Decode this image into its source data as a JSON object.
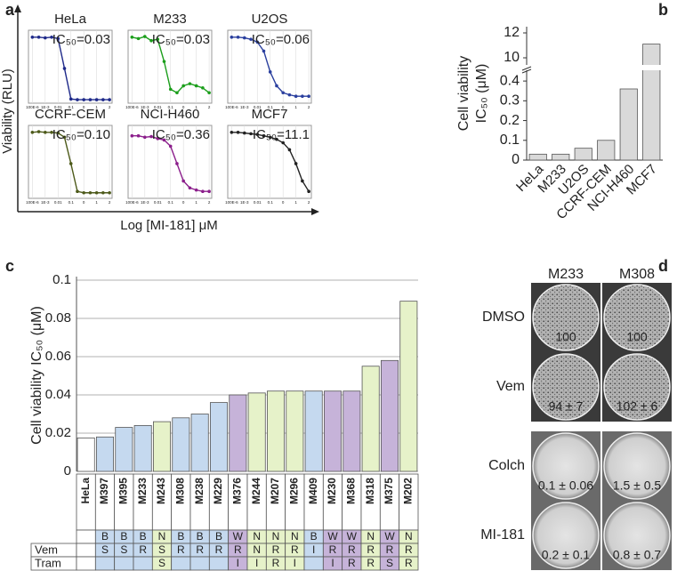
{
  "panel_labels": [
    "a",
    "b",
    "c",
    "d"
  ],
  "panel_a": {
    "ylabel": "Viability (RLU)",
    "xlabel": "Log [MI-181] μM"
  },
  "chart_data": [
    {
      "type": "dose-response",
      "title": "HeLa",
      "annotation": "IC₅₀=0.03",
      "color": "#1f2a8a",
      "x": [
        -4,
        -3.5,
        -3,
        -2.5,
        -2,
        -1.5,
        -1,
        -0.5,
        0,
        0.5,
        1,
        1.5,
        2
      ],
      "values": [
        95,
        95,
        94,
        95,
        93,
        50,
        6,
        5,
        5,
        5,
        5,
        5,
        5
      ],
      "xlim": [
        -4.3,
        2.2
      ],
      "ylim": [
        0,
        105
      ],
      "grid": true,
      "xticks": [
        {
          "value": -4,
          "label": "100E-6"
        },
        {
          "value": -3,
          "label": "1E-3"
        },
        {
          "value": -2,
          "label": "0.01"
        },
        {
          "value": -1,
          "label": "0.1"
        },
        0,
        1,
        2
      ]
    },
    {
      "type": "dose-response",
      "title": "M233",
      "annotation": "IC₅₀=0.03",
      "color": "#1b9e1b",
      "x": [
        -4,
        -3.5,
        -3,
        -2.5,
        -2,
        -1.5,
        -1,
        -0.5,
        0,
        0.5,
        1,
        1.5,
        2
      ],
      "values": [
        95,
        93,
        96,
        90,
        92,
        60,
        20,
        15,
        25,
        28,
        25,
        22,
        15
      ],
      "xlim": [
        -4.3,
        2.2
      ],
      "ylim": [
        0,
        105
      ],
      "grid": true,
      "xticks": [
        {
          "value": -4,
          "label": "100E-6"
        },
        {
          "value": -3,
          "label": "1E-3"
        },
        {
          "value": -2,
          "label": "0.01"
        },
        {
          "value": -1,
          "label": "0.1"
        },
        0,
        1,
        2
      ]
    },
    {
      "type": "dose-response",
      "title": "U2OS",
      "annotation": "IC₅₀=0.06",
      "color": "#2a3f9e",
      "x": [
        -4,
        -3.5,
        -3,
        -2.5,
        -2,
        -1.5,
        -1,
        -0.5,
        0,
        0.5,
        1,
        1.5,
        2
      ],
      "values": [
        95,
        95,
        94,
        92,
        88,
        75,
        45,
        25,
        15,
        12,
        10,
        10,
        10
      ],
      "xlim": [
        -4.3,
        2.2
      ],
      "ylim": [
        0,
        105
      ],
      "grid": true,
      "xticks": [
        {
          "value": -4,
          "label": "100E-6"
        },
        {
          "value": -3,
          "label": "1E-3"
        },
        {
          "value": -2,
          "label": "0.01"
        },
        {
          "value": -1,
          "label": "0.1"
        },
        0,
        1,
        2
      ]
    },
    {
      "type": "dose-response",
      "title": "CCRF-CEM",
      "annotation": "IC₅₀=0.10",
      "color": "#4d5a1a",
      "x": [
        -4,
        -3.5,
        -3,
        -2.5,
        -2,
        -1.5,
        -1,
        -0.5,
        0,
        0.5,
        1,
        1.5,
        2
      ],
      "values": [
        95,
        96,
        95,
        95,
        94,
        88,
        50,
        10,
        8,
        8,
        8,
        8,
        8
      ],
      "xlim": [
        -4.3,
        2.2
      ],
      "ylim": [
        0,
        105
      ],
      "grid": true,
      "xticks": [
        {
          "value": -4,
          "label": "100E-6"
        },
        {
          "value": -3,
          "label": "1E-3"
        },
        {
          "value": -2,
          "label": "0.01"
        },
        {
          "value": -1,
          "label": "0.1"
        },
        0,
        1,
        2
      ]
    },
    {
      "type": "dose-response",
      "title": "NCI-H460",
      "annotation": "IC₅₀=0.36",
      "color": "#8b1e8b",
      "x": [
        -4,
        -3.5,
        -3,
        -2.5,
        -2,
        -1.5,
        -1,
        -0.5,
        0,
        0.5,
        1,
        1.5,
        2
      ],
      "values": [
        90,
        90,
        88,
        89,
        86,
        84,
        75,
        50,
        25,
        15,
        12,
        10,
        10
      ],
      "xlim": [
        -4.3,
        2.2
      ],
      "ylim": [
        0,
        105
      ],
      "grid": true,
      "xticks": [
        {
          "value": -4,
          "label": "100E-6"
        },
        {
          "value": -3,
          "label": "1E-3"
        },
        {
          "value": -2,
          "label": "0.01"
        },
        {
          "value": -1,
          "label": "0.1"
        },
        0,
        1,
        2
      ]
    },
    {
      "type": "dose-response",
      "title": "MCF7",
      "annotation": "IC₅₀=11.1",
      "color": "#222222",
      "x": [
        -4,
        -3.5,
        -3,
        -2.5,
        -2,
        -1.5,
        -1,
        -0.5,
        0,
        0.5,
        1,
        1.5,
        2
      ],
      "values": [
        95,
        95,
        94,
        93,
        92,
        90,
        88,
        85,
        80,
        70,
        50,
        25,
        10
      ],
      "xlim": [
        -4.3,
        2.2
      ],
      "ylim": [
        0,
        105
      ],
      "grid": true,
      "xticks": [
        {
          "value": -4,
          "label": "100E-6"
        },
        {
          "value": -3,
          "label": "1E-3"
        },
        {
          "value": -2,
          "label": "0.01"
        },
        {
          "value": -1,
          "label": "0.1"
        },
        0,
        1,
        2
      ]
    },
    {
      "type": "broken-bar",
      "ylabel": [
        "Cell viability",
        "IC₅₀ (μM)"
      ],
      "categories": [
        "HeLa",
        "M233",
        "U2OS",
        "CCRF-CEM",
        "NCI-H460",
        "MCF7"
      ],
      "values": [
        0.03,
        0.03,
        0.06,
        0.1,
        0.36,
        11.1
      ],
      "color": "#d9d9d9",
      "ylim": [
        0,
        12.5
      ],
      "axis_break": [
        0.45,
        9.5
      ],
      "yticks": [
        0,
        0.1,
        0.2,
        0.3,
        0.4,
        10,
        12
      ]
    },
    {
      "type": "bar",
      "ylabel": "Cell viability IC₅₀ (μM)",
      "categories": [
        "HeLa",
        "M397",
        "M395",
        "M233",
        "M243",
        "M308",
        "M238",
        "M229",
        "M376",
        "M244",
        "M207",
        "M296",
        "M409",
        "M230",
        "M368",
        "M318",
        "M375",
        "M202"
      ],
      "values": [
        0.0175,
        0.018,
        0.023,
        0.024,
        0.026,
        0.028,
        0.03,
        0.036,
        0.04,
        0.041,
        0.042,
        0.042,
        0.042,
        0.042,
        0.042,
        0.055,
        0.058,
        0.089
      ],
      "colors": [
        "#ffffff",
        "#c5d9ef",
        "#c5d9ef",
        "#c5d9ef",
        "#e6f2c9",
        "#c5d9ef",
        "#c5d9ef",
        "#c5d9ef",
        "#c6b3d9",
        "#e6f2c9",
        "#e6f2c9",
        "#e6f2c9",
        "#c5d9ef",
        "#c6b3d9",
        "#c6b3d9",
        "#e6f2c9",
        "#c6b3d9",
        "#e6f2c9"
      ],
      "ylim": [
        0,
        0.1
      ],
      "yticks": [
        0,
        0.02,
        0.04,
        0.06,
        0.08,
        0.1
      ],
      "grid": true
    }
  ],
  "panel_c_table": {
    "row_labels": [
      null,
      "Vem",
      "Tram"
    ],
    "rows": [
      [
        null,
        "B",
        "B",
        "B",
        "N",
        "B",
        "B",
        "B",
        "W",
        "N",
        "N",
        "N",
        "B",
        "W",
        "W",
        "N",
        "W",
        "N"
      ],
      [
        null,
        "S",
        "S",
        "R",
        "S",
        "R",
        "R",
        "R",
        "R",
        "N",
        "R",
        "R",
        "I",
        "R",
        "R",
        "R",
        "R",
        "R"
      ],
      [
        null,
        null,
        null,
        null,
        "S",
        null,
        null,
        null,
        "I",
        "I",
        "R",
        "I",
        null,
        "I",
        "R",
        "R",
        "S",
        "R"
      ]
    ]
  },
  "panel_d": {
    "columns": [
      "M233",
      "M308"
    ],
    "rows": [
      {
        "label": "DMSO",
        "values": [
          "100",
          "100"
        ]
      },
      {
        "label": "Vem",
        "values": [
          "94 ± 7",
          "102 ± 6"
        ]
      },
      {
        "label": "Colch",
        "values": [
          "0.1 ± 0.06",
          "1.5 ± 0.5"
        ]
      },
      {
        "label": "MI-181",
        "values": [
          "0.2 ± 0.1",
          "0.8 ± 0.7"
        ]
      }
    ]
  }
}
